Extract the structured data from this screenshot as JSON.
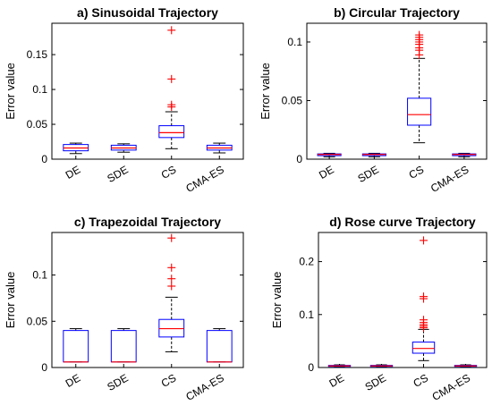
{
  "chart_data": [
    {
      "type": "box",
      "title": "a) Sinusoidal Trajectory",
      "xlabel": "",
      "ylabel": "Error value",
      "ylim": [
        0,
        0.195
      ],
      "yticks": [
        0,
        0.05,
        0.1,
        0.15
      ],
      "yticklabels": [
        "0",
        "0.05",
        "0.1",
        "0.15"
      ],
      "categories": [
        "DE",
        "SDE",
        "CS",
        "CMA-ES"
      ],
      "boxes": [
        {
          "whisker_low": 0.008,
          "q1": 0.012,
          "median": 0.016,
          "q3": 0.021,
          "whisker_high": 0.023,
          "outliers": []
        },
        {
          "whisker_low": 0.01,
          "q1": 0.013,
          "median": 0.016,
          "q3": 0.02,
          "whisker_high": 0.022,
          "outliers": []
        },
        {
          "whisker_low": 0.015,
          "q1": 0.031,
          "median": 0.038,
          "q3": 0.048,
          "whisker_high": 0.068,
          "outliers": [
            0.075,
            0.078,
            0.115,
            0.185
          ]
        },
        {
          "whisker_low": 0.009,
          "q1": 0.013,
          "median": 0.016,
          "q3": 0.02,
          "whisker_high": 0.023,
          "outliers": []
        }
      ]
    },
    {
      "type": "box",
      "title": "b) Circular Trajectory",
      "xlabel": "",
      "ylabel": "Error value",
      "ylim": [
        0,
        0.116
      ],
      "yticks": [
        0,
        0.05,
        0.1
      ],
      "yticklabels": [
        "0",
        "0.05",
        "0.1"
      ],
      "categories": [
        "DE",
        "SDE",
        "CS",
        "CMA-ES"
      ],
      "boxes": [
        {
          "whisker_low": 0.002,
          "q1": 0.003,
          "median": 0.004,
          "q3": 0.0045,
          "whisker_high": 0.005,
          "outliers": []
        },
        {
          "whisker_low": 0.002,
          "q1": 0.003,
          "median": 0.004,
          "q3": 0.0045,
          "whisker_high": 0.005,
          "outliers": []
        },
        {
          "whisker_low": 0.014,
          "q1": 0.029,
          "median": 0.038,
          "q3": 0.052,
          "whisker_high": 0.086,
          "outliers": [
            0.089,
            0.093,
            0.095,
            0.098,
            0.1,
            0.102,
            0.104,
            0.106
          ]
        },
        {
          "whisker_low": 0.002,
          "q1": 0.003,
          "median": 0.004,
          "q3": 0.0045,
          "whisker_high": 0.005,
          "outliers": []
        }
      ]
    },
    {
      "type": "box",
      "title": "c) Trapezoidal Trajectory",
      "xlabel": "",
      "ylabel": "Error value",
      "ylim": [
        0,
        0.146
      ],
      "yticks": [
        0,
        0.05,
        0.1
      ],
      "yticklabels": [
        "0",
        "0.05",
        "0.1"
      ],
      "categories": [
        "DE",
        "SDE",
        "CS",
        "CMA-ES"
      ],
      "boxes": [
        {
          "whisker_low": 0.006,
          "q1": 0.006,
          "median": 0.006,
          "q3": 0.04,
          "whisker_high": 0.042,
          "outliers": []
        },
        {
          "whisker_low": 0.006,
          "q1": 0.006,
          "median": 0.006,
          "q3": 0.04,
          "whisker_high": 0.042,
          "outliers": []
        },
        {
          "whisker_low": 0.017,
          "q1": 0.033,
          "median": 0.042,
          "q3": 0.052,
          "whisker_high": 0.076,
          "outliers": [
            0.088,
            0.096,
            0.108,
            0.14
          ]
        },
        {
          "whisker_low": 0.006,
          "q1": 0.006,
          "median": 0.006,
          "q3": 0.04,
          "whisker_high": 0.042,
          "outliers": []
        }
      ]
    },
    {
      "type": "box",
      "title": "d) Rose curve Trajectory",
      "xlabel": "",
      "ylabel": "Error value",
      "ylim": [
        0,
        0.255
      ],
      "yticks": [
        0,
        0.1,
        0.2
      ],
      "yticklabels": [
        "0",
        "0.1",
        "0.2"
      ],
      "categories": [
        "DE",
        "SDE",
        "CS",
        "CMA-ES"
      ],
      "boxes": [
        {
          "whisker_low": 0.001,
          "q1": 0.002,
          "median": 0.003,
          "q3": 0.004,
          "whisker_high": 0.005,
          "outliers": []
        },
        {
          "whisker_low": 0.001,
          "q1": 0.002,
          "median": 0.003,
          "q3": 0.004,
          "whisker_high": 0.005,
          "outliers": []
        },
        {
          "whisker_low": 0.013,
          "q1": 0.027,
          "median": 0.036,
          "q3": 0.048,
          "whisker_high": 0.072,
          "outliers": [
            0.075,
            0.078,
            0.081,
            0.085,
            0.09,
            0.13,
            0.134,
            0.24
          ]
        },
        {
          "whisker_low": 0.001,
          "q1": 0.002,
          "median": 0.003,
          "q3": 0.004,
          "whisker_high": 0.005,
          "outliers": []
        }
      ]
    }
  ],
  "colors": {
    "box": "#0000ff",
    "median": "#ff0000",
    "whisker": "#000000",
    "outlier": "#ff0000",
    "axes": "#000000"
  }
}
